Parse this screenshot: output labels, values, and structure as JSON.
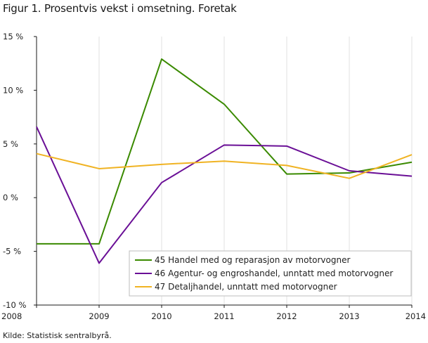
{
  "title": "Figur 1. Prosentvis vekst i omsetning. Foretak",
  "source": "Kilde: Statistisk sentralbyrå.",
  "chart_data": {
    "type": "line",
    "x": [
      "2008",
      "2009",
      "2010",
      "2011",
      "2012",
      "2013",
      "2014"
    ],
    "ylim": [
      -10,
      15
    ],
    "yticks": [
      15,
      10,
      5,
      0,
      -5,
      -10
    ],
    "ytick_labels": [
      "15 %",
      "10 %",
      "5 %",
      "0 %",
      "-5 %",
      "-10 %"
    ],
    "grid": "vertical",
    "legend_position": "bottom-right",
    "series": [
      {
        "name": "45 Handel med og reparasjon av motorvogner",
        "color": "#3a8a00",
        "values": [
          -4.3,
          -4.3,
          12.9,
          8.7,
          2.2,
          2.3,
          3.3
        ]
      },
      {
        "name": "46 Agentur- og engroshandel, unntatt med motorvogner",
        "color": "#6a0f96",
        "values": [
          6.6,
          -6.1,
          1.4,
          4.9,
          4.8,
          2.5,
          2.0
        ]
      },
      {
        "name": "47 Detaljhandel, unntatt med motorvogner",
        "color": "#f0b323",
        "values": [
          4.1,
          2.7,
          3.1,
          3.4,
          3.0,
          1.8,
          4.0
        ]
      }
    ]
  }
}
